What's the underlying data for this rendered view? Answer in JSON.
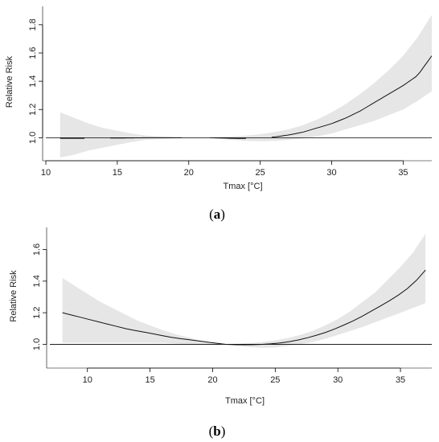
{
  "chart_data": [
    {
      "panel": "a",
      "type": "line",
      "caption_label": "a",
      "xlabel": "Tmax [°C]",
      "ylabel": "Relative Risk",
      "xlim": [
        10,
        37
      ],
      "ylim": [
        0.86,
        1.93
      ],
      "xticks": [
        10,
        15,
        20,
        25,
        30,
        35
      ],
      "yticks": [
        1.0,
        1.2,
        1.4,
        1.6,
        1.8
      ],
      "ytick_labels": [
        "1.0",
        "1.2",
        "1.4",
        "1.6",
        "1.8"
      ],
      "reference_line": 1.0,
      "line_style": "solid-with-gaps",
      "line_segments": [
        [
          11,
          12.7
        ],
        [
          14.5,
          19.5
        ],
        [
          21.5,
          24
        ],
        [
          25.8,
          37
        ]
      ],
      "series": [
        {
          "type": "line",
          "x": [
            11,
            12,
            13,
            14,
            15,
            16,
            17,
            18,
            19,
            20,
            21,
            22,
            23,
            24,
            25,
            26,
            27,
            28,
            29,
            30,
            31,
            32,
            33,
            34,
            35,
            36,
            37
          ],
          "values": [
            0.996,
            0.996,
            0.996,
            0.997,
            0.998,
            0.999,
            1.0,
            1.0,
            1.0,
            1.0,
            1.0,
            0.999,
            0.996,
            0.995,
            0.996,
            1.005,
            1.02,
            1.04,
            1.07,
            1.1,
            1.14,
            1.19,
            1.25,
            1.31,
            1.37,
            1.44,
            1.58
          ]
        },
        {
          "type": "band",
          "x": [
            11,
            12,
            13,
            14,
            15,
            16,
            17,
            18,
            19,
            20,
            21,
            22,
            23,
            24,
            25,
            26,
            27,
            28,
            29,
            30,
            31,
            32,
            33,
            34,
            35,
            36,
            37
          ],
          "upper": [
            1.18,
            1.14,
            1.1,
            1.07,
            1.05,
            1.03,
            1.015,
            1.01,
            1.005,
            1.0,
            1.0,
            1.005,
            1.01,
            1.015,
            1.025,
            1.04,
            1.06,
            1.09,
            1.13,
            1.18,
            1.24,
            1.31,
            1.39,
            1.48,
            1.58,
            1.71,
            1.87
          ],
          "lower": [
            0.86,
            0.88,
            0.91,
            0.93,
            0.95,
            0.97,
            0.985,
            0.99,
            0.995,
            1.0,
            1.0,
            0.993,
            0.985,
            0.978,
            0.975,
            0.978,
            0.985,
            0.995,
            1.01,
            1.03,
            1.06,
            1.09,
            1.12,
            1.16,
            1.2,
            1.26,
            1.33
          ]
        }
      ]
    },
    {
      "panel": "b",
      "type": "line",
      "caption_label": "b",
      "xlabel": "Tmax [°C]",
      "ylabel": "Relative Risk",
      "xlim": [
        7,
        37.5
      ],
      "ylim": [
        0.87,
        1.74
      ],
      "xticks": [
        10,
        15,
        20,
        25,
        30,
        35
      ],
      "yticks": [
        1.0,
        1.2,
        1.4,
        1.6
      ],
      "ytick_labels": [
        "1.0",
        "1.2",
        "1.4",
        "1.6"
      ],
      "reference_line": 1.0,
      "line_style": "solid",
      "series": [
        {
          "type": "line",
          "x": [
            8,
            9,
            10,
            11,
            12,
            13,
            14,
            15,
            16,
            17,
            18,
            19,
            20,
            21,
            22,
            23,
            24,
            25,
            26,
            27,
            28,
            29,
            30,
            31,
            32,
            33,
            34,
            35,
            36,
            37
          ],
          "values": [
            1.2,
            1.18,
            1.16,
            1.14,
            1.12,
            1.1,
            1.085,
            1.07,
            1.055,
            1.04,
            1.03,
            1.02,
            1.01,
            1.0,
            0.997,
            0.997,
            1.0,
            1.005,
            1.015,
            1.03,
            1.05,
            1.075,
            1.105,
            1.14,
            1.18,
            1.225,
            1.27,
            1.32,
            1.38,
            1.47
          ]
        },
        {
          "type": "band",
          "x": [
            8,
            9,
            10,
            11,
            12,
            13,
            14,
            15,
            16,
            17,
            18,
            19,
            20,
            21,
            22,
            23,
            24,
            25,
            26,
            27,
            28,
            29,
            30,
            31,
            32,
            33,
            34,
            35,
            36,
            37
          ],
          "upper": [
            1.42,
            1.37,
            1.32,
            1.27,
            1.23,
            1.19,
            1.15,
            1.12,
            1.09,
            1.065,
            1.045,
            1.025,
            1.01,
            1.0,
            1.003,
            1.008,
            1.015,
            1.025,
            1.04,
            1.06,
            1.085,
            1.12,
            1.16,
            1.21,
            1.27,
            1.33,
            1.41,
            1.49,
            1.58,
            1.7
          ],
          "lower": [
            1.01,
            1.01,
            1.01,
            1.01,
            1.01,
            1.01,
            1.01,
            1.01,
            1.01,
            1.005,
            1.0,
            0.998,
            0.998,
            1.0,
            0.99,
            0.982,
            0.978,
            0.98,
            0.99,
            1.0,
            1.015,
            1.035,
            1.06,
            1.085,
            1.11,
            1.14,
            1.17,
            1.2,
            1.23,
            1.26
          ]
        }
      ]
    }
  ]
}
